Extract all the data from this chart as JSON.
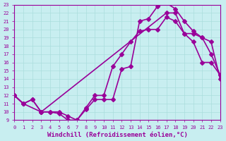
{
  "xlabel": "Windchill (Refroidissement éolien,°C)",
  "bg_color": "#c8eef0",
  "line_color": "#990099",
  "xlim": [
    0,
    23
  ],
  "ylim": [
    9,
    23
  ],
  "xticks": [
    0,
    1,
    2,
    3,
    4,
    5,
    6,
    7,
    8,
    9,
    10,
    11,
    12,
    13,
    14,
    15,
    16,
    17,
    18,
    19,
    20,
    21,
    22,
    23
  ],
  "yticks": [
    9,
    10,
    11,
    12,
    13,
    14,
    15,
    16,
    17,
    18,
    19,
    20,
    21,
    22,
    23
  ],
  "line1_x": [
    0,
    1,
    2,
    3,
    4,
    5,
    6,
    7,
    8,
    9,
    10,
    11,
    12,
    13,
    14,
    15,
    16,
    17,
    18,
    19,
    20,
    21,
    22,
    23
  ],
  "line1_y": [
    12,
    11,
    11.5,
    10,
    10,
    10,
    9.5,
    9,
    10.5,
    12,
    12,
    15.5,
    17,
    18.5,
    19.8,
    20,
    20,
    21.5,
    21,
    19.5,
    18.5,
    16,
    16,
    14.5
  ],
  "line2_x": [
    0,
    1,
    3,
    4,
    5,
    6,
    7,
    8,
    9,
    10,
    11,
    12,
    13,
    14,
    15,
    16,
    17,
    18,
    19,
    20,
    21,
    22,
    23
  ],
  "line2_y": [
    12,
    11,
    10,
    10,
    9.8,
    9,
    9,
    10.3,
    11.5,
    11.5,
    11.5,
    15.2,
    15.5,
    21,
    21.3,
    22.8,
    23.2,
    22.5,
    21,
    19.8,
    19,
    18.5,
    14
  ],
  "line3_x": [
    0,
    1,
    2,
    3,
    17,
    18,
    19,
    20,
    21,
    22,
    23
  ],
  "line3_y": [
    12,
    11,
    11.5,
    10,
    22,
    22,
    19.5,
    19.5,
    19,
    17,
    14.5
  ],
  "marker": "D",
  "markersize": 3,
  "linewidth": 1.2,
  "tick_fontsize": 5,
  "xlabel_fontsize": 6.5,
  "grid_color": "#aadddd",
  "grid_linewidth": 0.5
}
